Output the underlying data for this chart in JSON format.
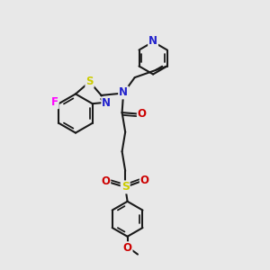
{
  "bg_color": "#e8e8e8",
  "bond_color": "#1a1a1a",
  "bond_width": 1.5,
  "fig_width": 3.0,
  "fig_height": 3.0,
  "dpi": 100,
  "colors": {
    "F": "#ff00ff",
    "S": "#cccc00",
    "N": "#2222cc",
    "O": "#cc0000",
    "C": "#1a1a1a"
  }
}
